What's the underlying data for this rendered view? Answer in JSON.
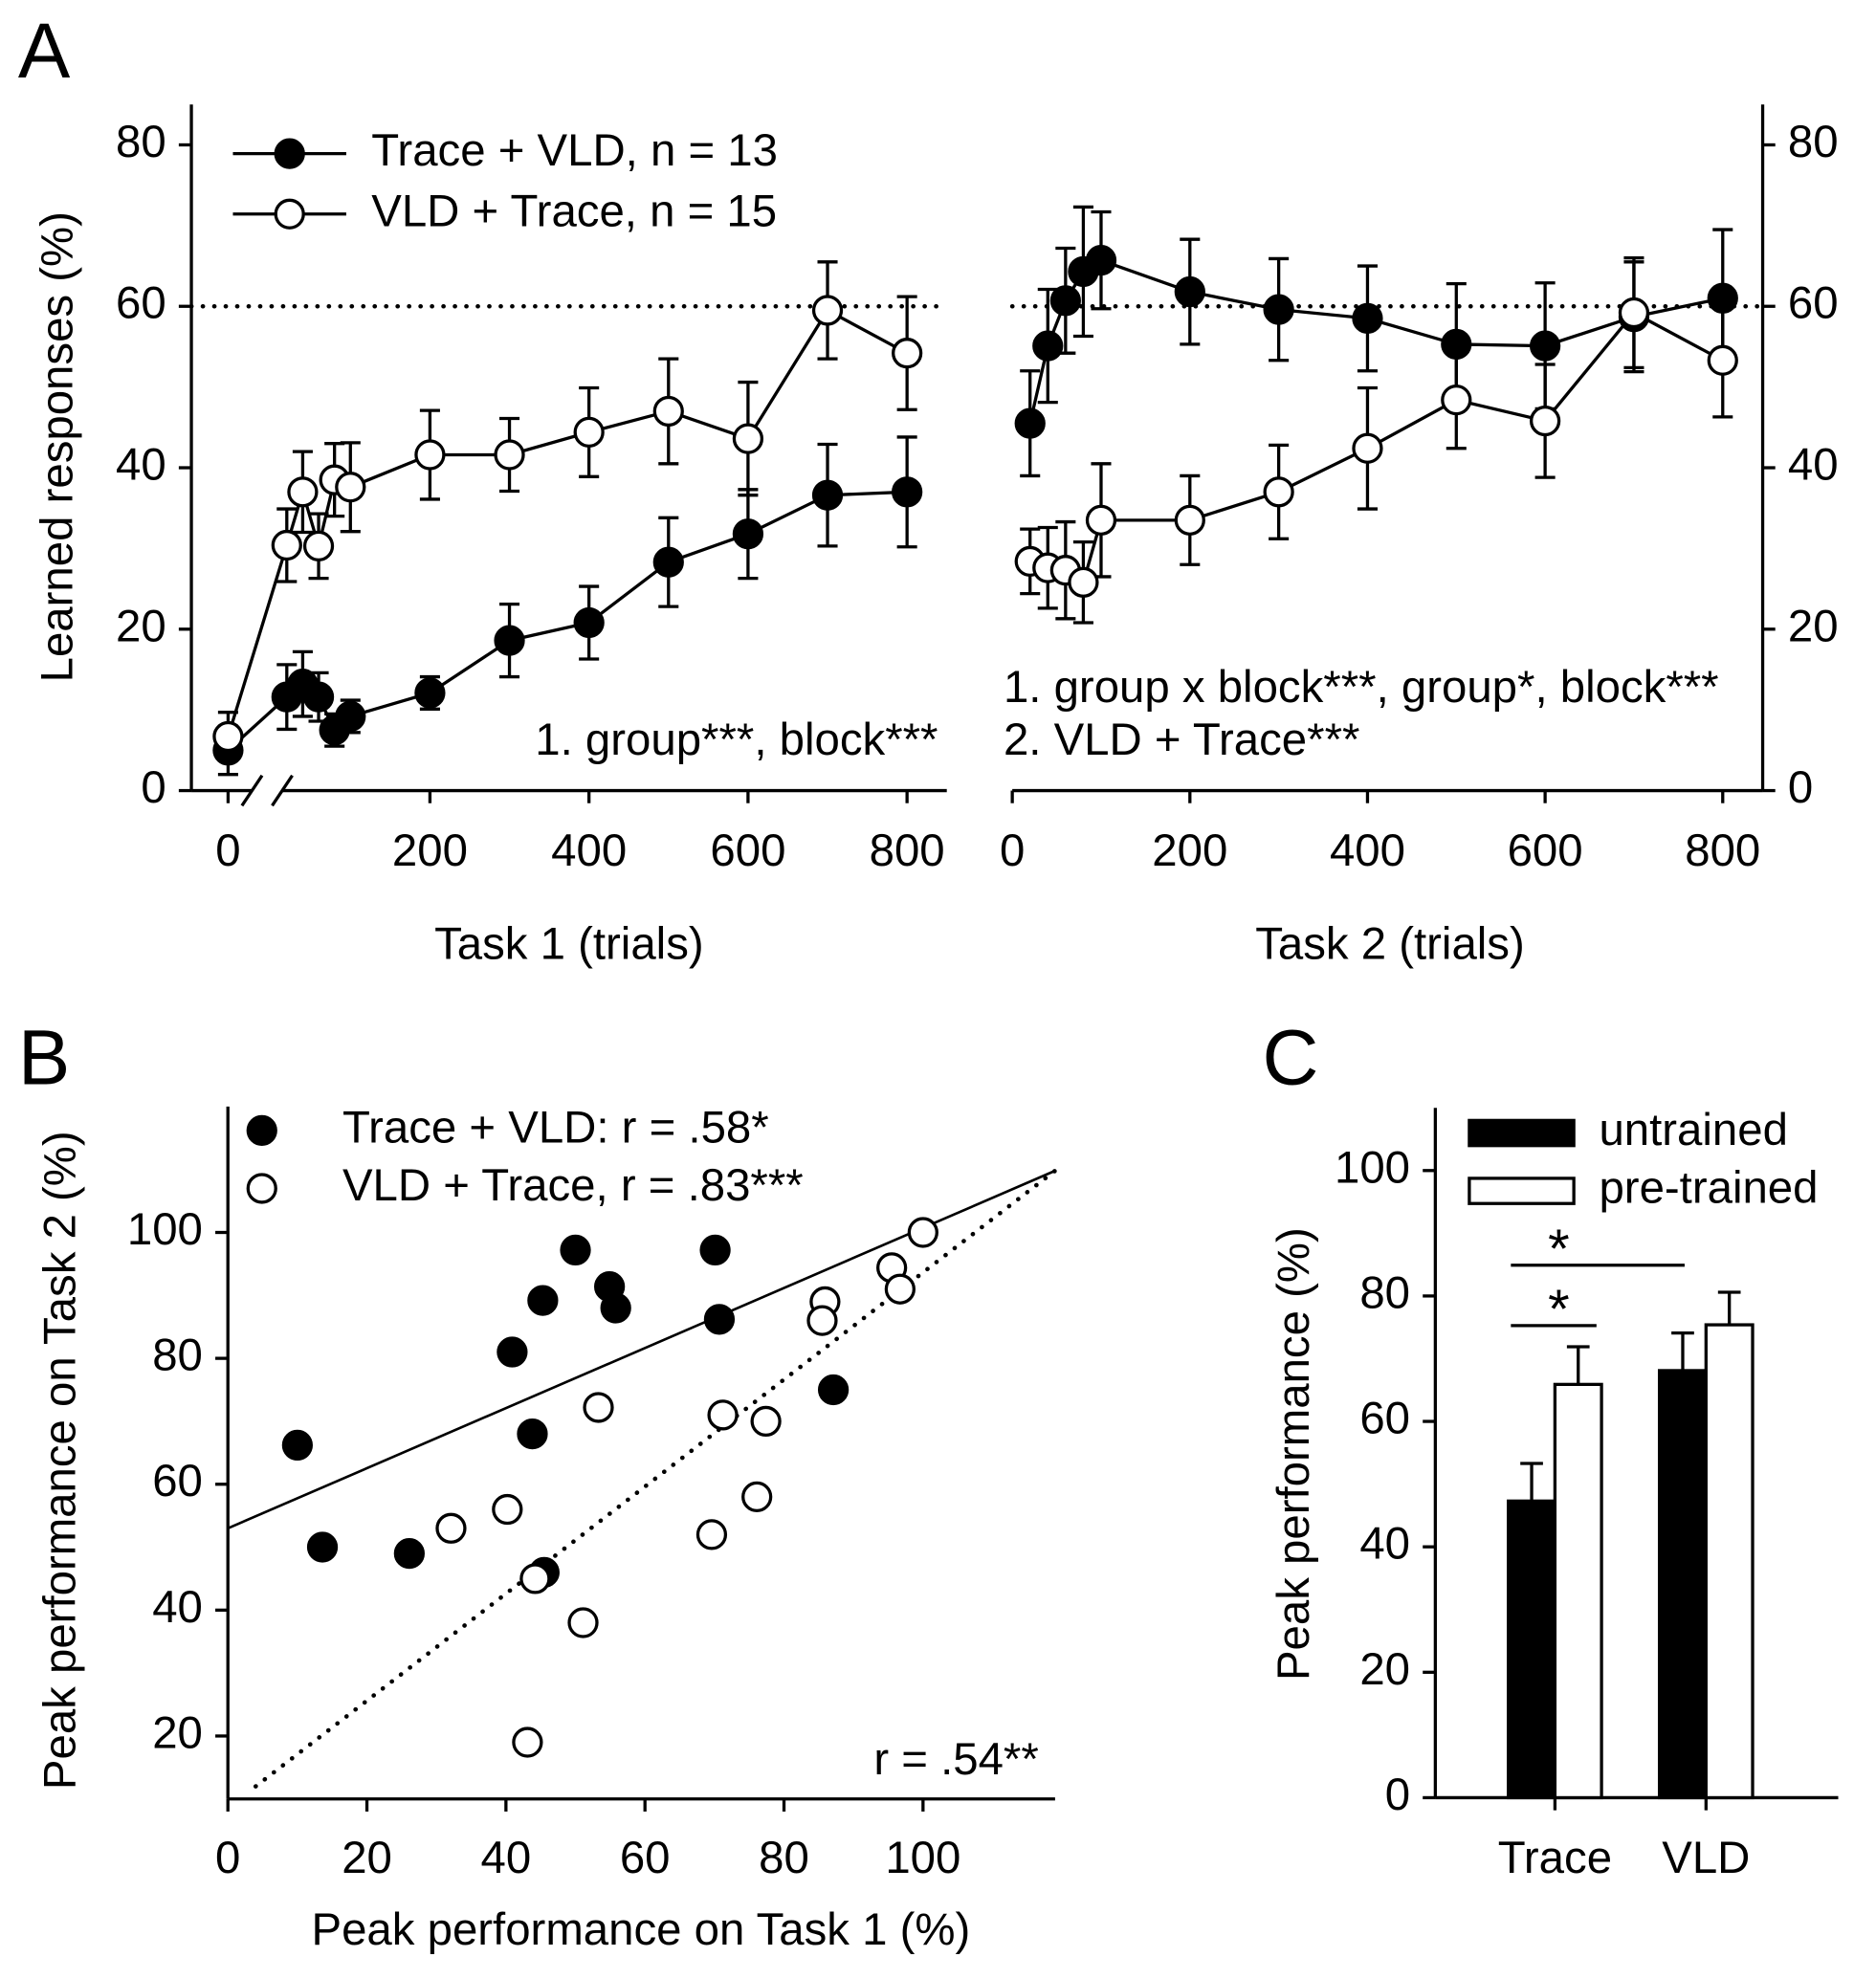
{
  "chart_data": [
    {
      "type": "line",
      "panel_label": "A",
      "xlabel": "Task 1 (trials)",
      "ylabel": "Learned responses (%)",
      "x": [
        0,
        20,
        40,
        60,
        80,
        100,
        200,
        300,
        400,
        500,
        600,
        700,
        800
      ],
      "x_break": true,
      "xlim": [
        -100,
        850
      ],
      "xticks": [
        0,
        200,
        400,
        600,
        800
      ],
      "ylim": [
        0,
        85
      ],
      "yticks": [
        0,
        20,
        40,
        60,
        80
      ],
      "y_axis_side": "left",
      "hline": 60,
      "hline_style": "dotted",
      "series": [
        {
          "name": "Trace + VLD, n = 13",
          "color": "#000000",
          "marker_fill": "#000000",
          "values": [
            5,
            11.6,
            13.2,
            11.6,
            7.5,
            9.2,
            12.1,
            18.6,
            20.8,
            28.3,
            31.8,
            36.6,
            37.0
          ],
          "errors": [
            3,
            4,
            4,
            3,
            2,
            2,
            2,
            4.5,
            4.5,
            5.5,
            5.5,
            6.3,
            6.8
          ]
        },
        {
          "name": "VLD + Trace, n = 15",
          "color": "#000000",
          "marker_fill": "#ffffff",
          "values": [
            6.7,
            30.4,
            37.0,
            30.3,
            38.5,
            37.6,
            41.6,
            41.6,
            44.4,
            47.0,
            43.6,
            59.5,
            54.2
          ],
          "errors": [
            3,
            4.5,
            5,
            4,
            4.5,
            5.5,
            5.5,
            4.5,
            5.5,
            6.5,
            7,
            6,
            7
          ]
        }
      ],
      "annotations": [
        "1. group***, block***"
      ]
    },
    {
      "type": "line",
      "xlabel": "Task 2 (trials)",
      "x": [
        20,
        40,
        60,
        80,
        100,
        200,
        300,
        400,
        500,
        600,
        700,
        800
      ],
      "xlim": [
        0,
        845
      ],
      "xticks": [
        0,
        200,
        400,
        600,
        800
      ],
      "ylim": [
        0,
        85
      ],
      "yticks": [
        0,
        20,
        40,
        60,
        80
      ],
      "y_axis_side": "right",
      "hline": 60,
      "hline_style": "dotted",
      "series": [
        {
          "color": "#000000",
          "marker_fill": "#000000",
          "values": [
            45.5,
            55.1,
            60.7,
            64.3,
            65.7,
            61.8,
            59.6,
            58.5,
            55.3,
            55.1,
            58.7,
            61.0
          ],
          "errors": [
            6.5,
            7,
            6.5,
            8,
            6,
            6.5,
            6.3,
            6.5,
            7.5,
            7.8,
            6.8,
            8.5
          ]
        },
        {
          "color": "#000000",
          "marker_fill": "#ffffff",
          "values": [
            28.4,
            27.6,
            27.3,
            25.8,
            33.5,
            33.5,
            37.0,
            42.4,
            48.4,
            45.8,
            59.2,
            53.3
          ],
          "errors": [
            4,
            5,
            6,
            5,
            7,
            5.5,
            5.8,
            7.5,
            6,
            7,
            6.8,
            7
          ]
        }
      ],
      "annotations": [
        "1. group x block***, group*, block***",
        "2. VLD + Trace***"
      ]
    },
    {
      "type": "scatter",
      "panel_label": "B",
      "xlabel": "Peak performance on Task 1 (%)",
      "ylabel": "Peak performance on Task 2 (%)",
      "xlim": [
        0,
        119
      ],
      "xticks": [
        0,
        20,
        40,
        60,
        80,
        100
      ],
      "ylim": [
        10,
        120
      ],
      "yticks": [
        20,
        40,
        60,
        80,
        100
      ],
      "series": [
        {
          "name": "Trace + VLD: r = .58*",
          "color": "#000000",
          "marker_fill": "#000000",
          "x": [
            10,
            13.6,
            26.1,
            40.9,
            43.8,
            45.3,
            45.5,
            50,
            54.9,
            55.8,
            70.1,
            70.7,
            87.1
          ],
          "values": [
            66.2,
            50,
            49,
            81,
            68,
            89.2,
            46,
            97.2,
            91.4,
            88,
            97.2,
            86.2,
            75
          ]
        },
        {
          "name": "VLD + Trace, r = .83***",
          "color": "#000000",
          "marker_fill": "#ffffff",
          "x": [
            32.1,
            40.2,
            44.2,
            43.1,
            51.1,
            53.3,
            69.6,
            71.2,
            76.1,
            77.4,
            85.9,
            85.5,
            95.5,
            96.7,
            100
          ],
          "values": [
            53,
            56,
            45,
            19,
            38,
            72.2,
            52,
            71,
            58,
            70,
            89,
            86,
            94.4,
            91,
            100
          ]
        }
      ],
      "fit_lines": [
        {
          "style": "solid",
          "x": [
            0,
            119
          ],
          "values": [
            53,
            109.8
          ]
        },
        {
          "style": "dotted",
          "x": [
            4,
            119
          ],
          "values": [
            12,
            109.8
          ]
        }
      ],
      "annotations": [
        "r = .54**"
      ]
    },
    {
      "type": "bar",
      "panel_label": "C",
      "ylabel": "Peak performance (%)",
      "categories": [
        "Trace",
        "VLD"
      ],
      "ylim": [
        0,
        110
      ],
      "yticks": [
        0,
        20,
        40,
        60,
        80,
        100
      ],
      "series": [
        {
          "name": "untrained",
          "color": "#000000",
          "values": [
            47.3,
            68.1
          ],
          "errors": [
            6,
            6
          ]
        },
        {
          "name": "pre-trained",
          "color": "#ffffff",
          "values": [
            65.9,
            75.4
          ],
          "errors": [
            6,
            5.2
          ]
        }
      ],
      "annotations": [
        "*",
        "*"
      ]
    }
  ]
}
